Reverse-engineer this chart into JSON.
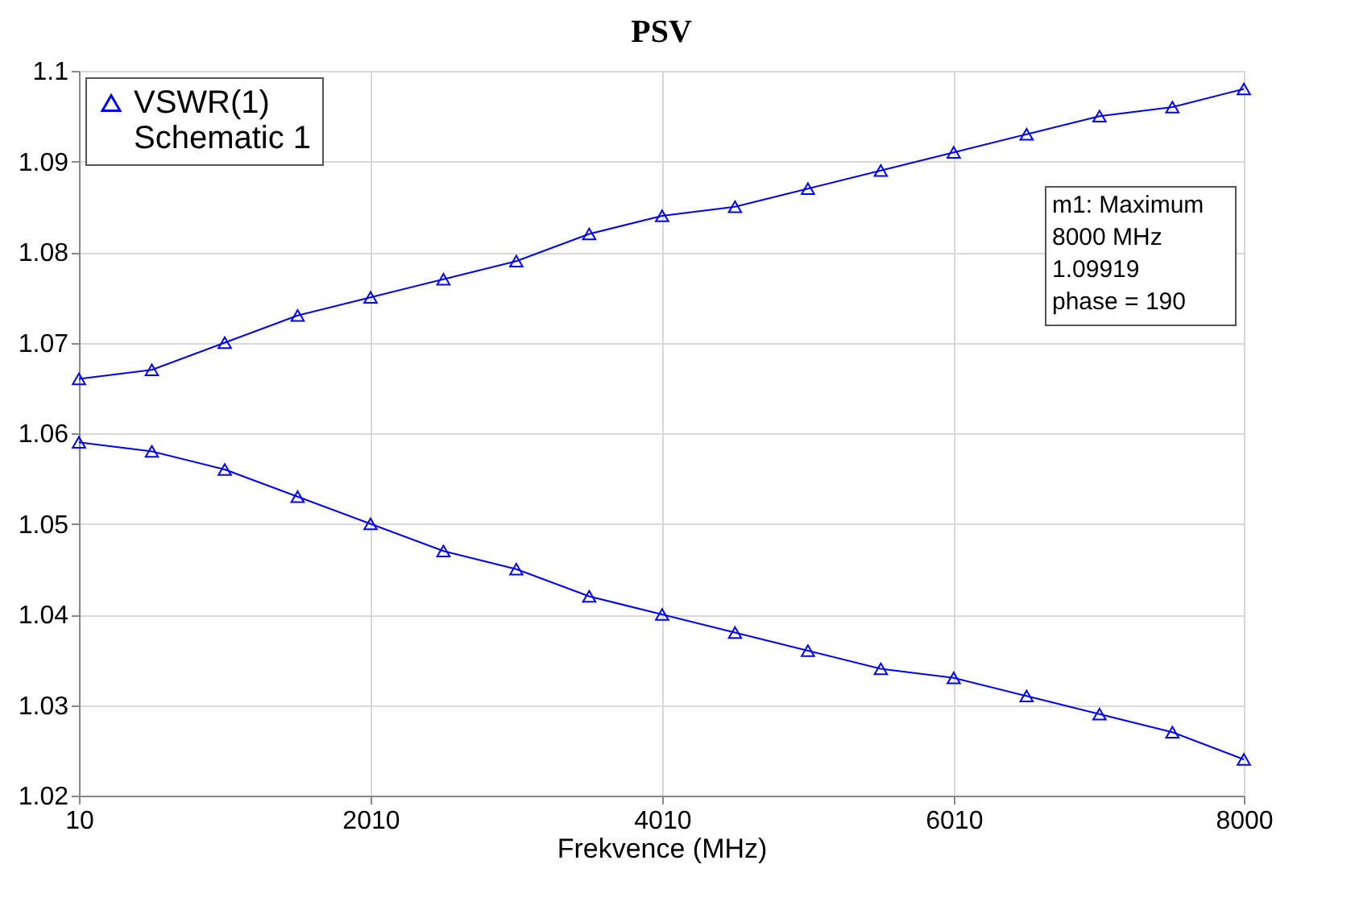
{
  "chart_data": {
    "type": "line",
    "title": "PSV",
    "xlabel": "Frekvence (MHz)",
    "x": [
      10,
      510,
      1010,
      1510,
      2010,
      2510,
      3010,
      3510,
      4010,
      4510,
      5010,
      5510,
      6010,
      6510,
      7010,
      7510,
      8000
    ],
    "series": [
      {
        "name": "VSWR(1)\nSchematic 1",
        "color": "#0000ff",
        "values": [
          1.066,
          1.067,
          1.07,
          1.073,
          1.075,
          1.077,
          1.079,
          1.082,
          1.084,
          1.085,
          1.087,
          1.089,
          1.091,
          1.093,
          1.095,
          1.096,
          1.098
        ]
      },
      {
        "color": "#0000ff",
        "values": [
          1.059,
          1.058,
          1.056,
          1.053,
          1.05,
          1.047,
          1.045,
          1.042,
          1.04,
          1.038,
          1.036,
          1.034,
          1.033,
          1.031,
          1.029,
          1.027,
          1.024
        ]
      }
    ],
    "xlim": [
      10,
      8000
    ],
    "xticks": [
      10,
      2010,
      4010,
      6010,
      8000
    ],
    "ylim": [
      1.02,
      1.1
    ],
    "yticks": [
      1.02,
      1.03,
      1.04,
      1.05,
      1.06,
      1.07,
      1.08,
      1.09,
      1.1
    ],
    "grid": true,
    "legend": "top left",
    "marker": "triangle",
    "line_style": "solid",
    "annotations": [
      "m1: Maximum\n8000 MHz\n1.09919\nphase = 190"
    ]
  }
}
